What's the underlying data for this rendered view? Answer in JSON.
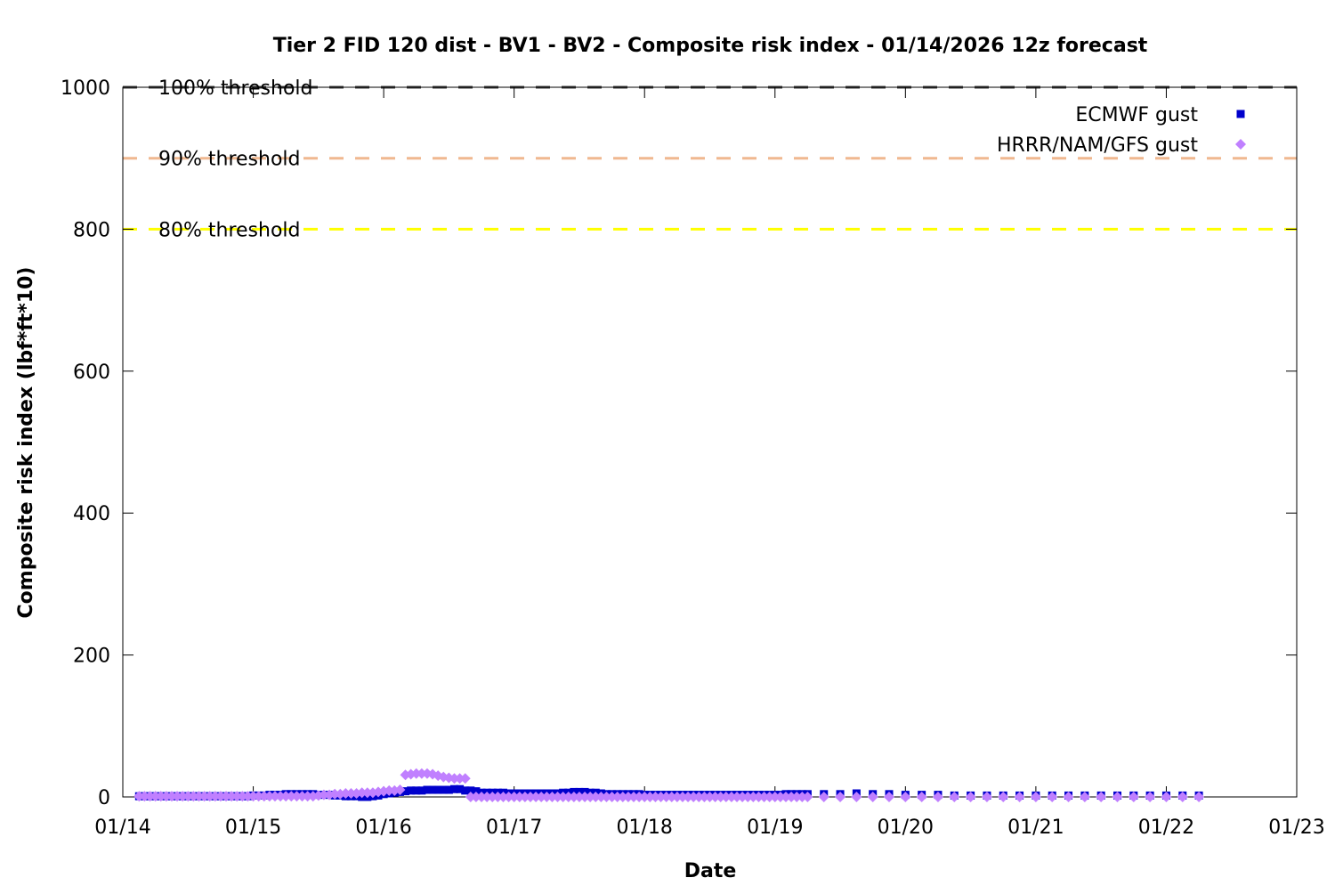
{
  "chart_data": {
    "type": "scatter",
    "title": "Tier 2 FID 120 dist - BV1 - BV2 - Composite risk index - 01/14/2026 12z forecast",
    "xlabel": "Date",
    "ylabel": "Composite risk index (lbf*ft*10)",
    "ylim": [
      0,
      1000
    ],
    "yticks": [
      0,
      200,
      400,
      600,
      800,
      1000
    ],
    "xlim": [
      "01/14",
      "01/23"
    ],
    "xticks": [
      "01/14",
      "01/15",
      "01/16",
      "01/17",
      "01/18",
      "01/19",
      "01/20",
      "01/21",
      "01/22",
      "01/23"
    ],
    "grid": false,
    "legend_position": "top-right",
    "thresholds": [
      {
        "label": "100% threshold",
        "value": 1000,
        "color": "#404040"
      },
      {
        "label": "90% threshold",
        "value": 900,
        "color": "#f0b890"
      },
      {
        "label": "80% threshold",
        "value": 800,
        "color": "#ffff00"
      }
    ],
    "x_hourly_from": "01/14 03z",
    "series": [
      {
        "name": "ECMWF gust",
        "color": "#0000cc",
        "marker": "square",
        "hourly_values": [
          1,
          1,
          1,
          1,
          1,
          1,
          1,
          1,
          1,
          1,
          1,
          1,
          1,
          1,
          1,
          1,
          1,
          1,
          1,
          1,
          1,
          2,
          2,
          2,
          3,
          3,
          3,
          4,
          4,
          4,
          4,
          4,
          4,
          3,
          3,
          3,
          2,
          2,
          1,
          1,
          1,
          0,
          0,
          1,
          2,
          4,
          5,
          6,
          7,
          8,
          9,
          9,
          9,
          10,
          10,
          10,
          10,
          10,
          11,
          11,
          9,
          9,
          8,
          6,
          6,
          6,
          6,
          6,
          5,
          5,
          5,
          5,
          5,
          5,
          5,
          5,
          5,
          5,
          6,
          6,
          7,
          7,
          7,
          6,
          6,
          5,
          4,
          4,
          4,
          4,
          4,
          4,
          4,
          3,
          3,
          3,
          3,
          3,
          3,
          3,
          3,
          3,
          3,
          3,
          3,
          3,
          3,
          3,
          3,
          3,
          3,
          3,
          3,
          3,
          3,
          3,
          3,
          3,
          3,
          4,
          4,
          4,
          4,
          4
        ],
        "three_hourly_values": [
          4,
          4,
          5,
          4,
          4,
          3,
          3,
          3,
          2,
          2,
          2,
          2,
          2,
          2,
          2,
          2,
          2,
          2,
          2,
          2,
          2,
          2,
          2,
          2
        ]
      },
      {
        "name": "HRRR/NAM/GFS gust",
        "color": "#c080ff",
        "marker": "diamond",
        "hourly_values": [
          1,
          1,
          1,
          1,
          1,
          1,
          1,
          1,
          1,
          1,
          1,
          1,
          1,
          1,
          1,
          1,
          1,
          1,
          1,
          1,
          1,
          1,
          1,
          1,
          1,
          1,
          1,
          1,
          1,
          1,
          1,
          1,
          1,
          2,
          3,
          3,
          4,
          4,
          5,
          5,
          5,
          6,
          6,
          6,
          7,
          8,
          9,
          9,
          10,
          31,
          32,
          33,
          33,
          33,
          32,
          30,
          28,
          27,
          26,
          26,
          26,
          0,
          0,
          0,
          0,
          0,
          0,
          0,
          0,
          0,
          0,
          0,
          0,
          0,
          0,
          0,
          0,
          0,
          0,
          0,
          0,
          0,
          0,
          0,
          0,
          0,
          0,
          0,
          0,
          0,
          0,
          0,
          0,
          0,
          0,
          0,
          0,
          0,
          0,
          0,
          0,
          0,
          0,
          0,
          0,
          0,
          0,
          0,
          0,
          0,
          0,
          0,
          0,
          0,
          0,
          0,
          0,
          0,
          0,
          0,
          0,
          0,
          0,
          0
        ],
        "three_hourly_values": [
          0,
          0,
          0,
          0,
          0,
          0,
          0,
          0,
          0,
          0,
          0,
          0,
          0,
          0,
          0,
          0,
          0,
          0,
          0,
          0,
          0,
          0,
          0,
          0
        ]
      }
    ]
  }
}
